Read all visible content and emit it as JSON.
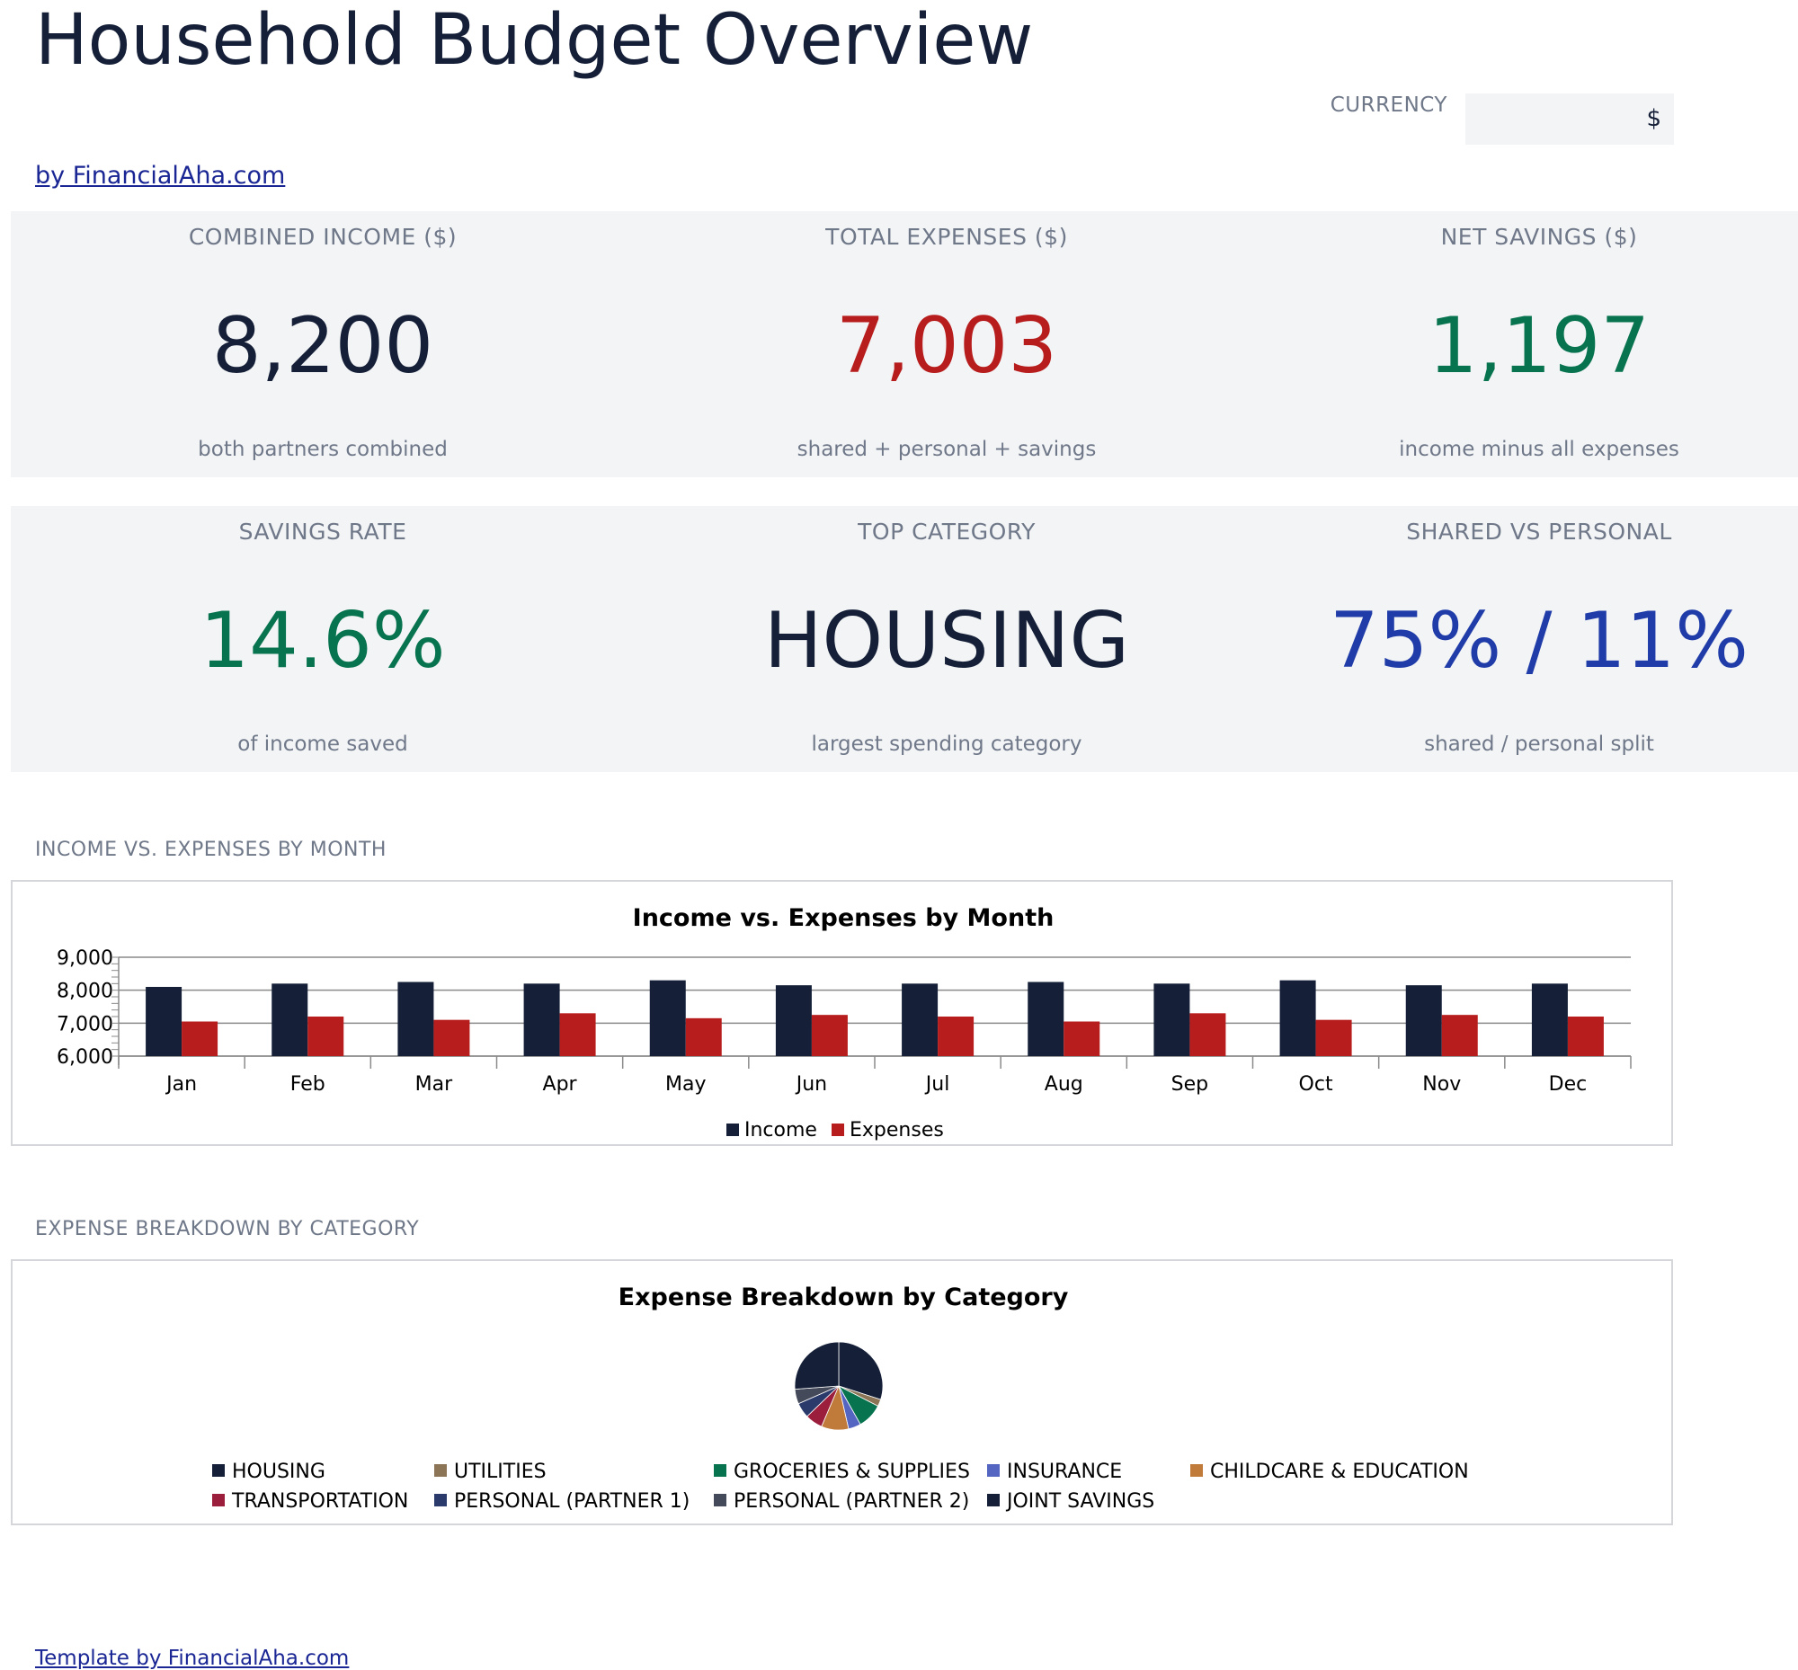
{
  "page": {
    "title": "Household Budget Overview",
    "byline": "by FinancialAha.com",
    "footer": "Template by FinancialAha.com"
  },
  "currency": {
    "label": "CURRENCY",
    "value": "$"
  },
  "kpis": {
    "combined_income": {
      "label": "COMBINED INCOME ($)",
      "value": "8,200",
      "sub": "both partners combined",
      "color": "#152038"
    },
    "total_expenses": {
      "label": "TOTAL EXPENSES ($)",
      "value": "7,003",
      "sub": "shared + personal + savings",
      "color": "#b81d1d"
    },
    "net_savings": {
      "label": "NET SAVINGS ($)",
      "value": "1,197",
      "sub": "income minus all expenses",
      "color": "#08744f"
    },
    "savings_rate": {
      "label": "SAVINGS RATE",
      "value": "14.6%",
      "sub": "of income saved",
      "color": "#08744f"
    },
    "top_category": {
      "label": "TOP CATEGORY",
      "value": "HOUSING",
      "sub": "largest spending category",
      "color": "#152038"
    },
    "shared_vs_personal": {
      "label": "SHARED VS PERSONAL",
      "value": "75% / 11%",
      "sub": "shared / personal split",
      "color": "#1f3ca8"
    }
  },
  "sections": {
    "income_vs_expenses": "INCOME VS. EXPENSES BY MONTH",
    "expense_breakdown": "EXPENSE BREAKDOWN BY CATEGORY"
  },
  "colors": {
    "income": "#152038",
    "expenses": "#b81d1d",
    "grid": "#8a8a8a"
  },
  "chart_data": [
    {
      "type": "bar",
      "title": "Income vs. Expenses by Month",
      "categories": [
        "Jan",
        "Feb",
        "Mar",
        "Apr",
        "May",
        "Jun",
        "Jul",
        "Aug",
        "Sep",
        "Oct",
        "Nov",
        "Dec"
      ],
      "series": [
        {
          "name": "Income",
          "color": "#152038",
          "values": [
            8100,
            8200,
            8250,
            8200,
            8300,
            8150,
            8200,
            8250,
            8200,
            8300,
            8150,
            8200
          ]
        },
        {
          "name": "Expenses",
          "color": "#b81d1d",
          "values": [
            7050,
            7200,
            7100,
            7300,
            7150,
            7250,
            7200,
            7050,
            7300,
            7100,
            7250,
            7200
          ]
        }
      ],
      "ylim": [
        6000,
        9000
      ],
      "yticks": [
        6000,
        7000,
        8000,
        9000
      ],
      "ytick_labels": [
        "6,000",
        "7,000",
        "8,000",
        "9,000"
      ],
      "legend": "bottom",
      "grid": true
    },
    {
      "type": "pie",
      "title": "Expense Breakdown by Category",
      "slices": [
        {
          "label": "HOUSING",
          "value": 2100,
          "color": "#152038"
        },
        {
          "label": "UTILITIES",
          "value": 180,
          "color": "#8c7556"
        },
        {
          "label": "GROCERIES & SUPPLIES",
          "value": 650,
          "color": "#08744f"
        },
        {
          "label": "INSURANCE",
          "value": 320,
          "color": "#5566c2"
        },
        {
          "label": "CHILDCARE & EDUCATION",
          "value": 700,
          "color": "#c07a3a"
        },
        {
          "label": "TRANSPORTATION",
          "value": 450,
          "color": "#9b1e3c"
        },
        {
          "label": "PERSONAL (PARTNER 1)",
          "value": 390,
          "color": "#2a3a6a"
        },
        {
          "label": "PERSONAL (PARTNER 2)",
          "value": 380,
          "color": "#454a5a"
        },
        {
          "label": "JOINT SAVINGS",
          "value": 1833,
          "color": "#152038"
        }
      ],
      "legend": "bottom"
    }
  ]
}
